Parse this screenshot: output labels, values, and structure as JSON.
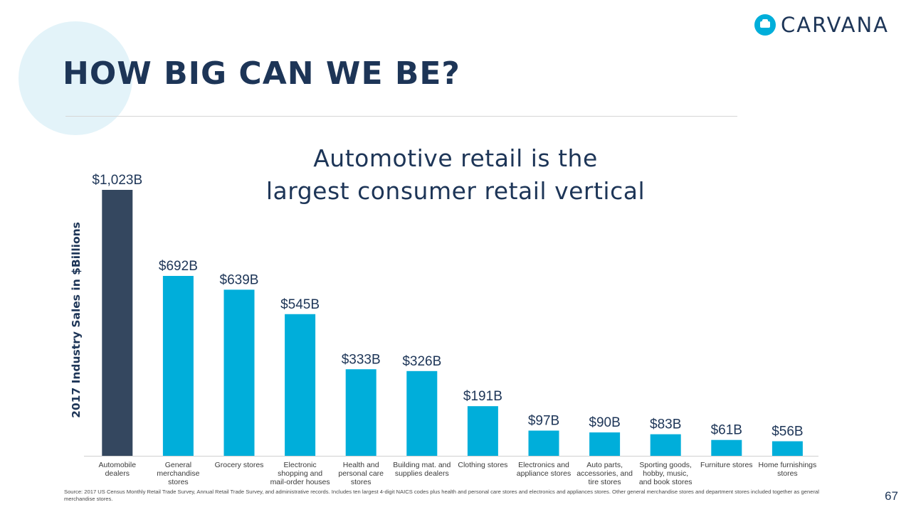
{
  "slide": {
    "title": "HOW BIG CAN WE BE?",
    "logo_text": "CARVANA",
    "subtitle_line1": "Automotive retail is the",
    "subtitle_line2": "largest consumer retail vertical",
    "footnote": "Source: 2017 US Census Monthly Retail Trade Survey, Annual Retail Trade Survey, and administrative records. Includes ten largest 4-digit NAICS codes plus health and personal care stores and electronics and appliances stores. Other general merchandise stores and department stores included together as general merchandise stores.",
    "page_number": "67"
  },
  "colors": {
    "highlight_bar": "#34475f",
    "bar": "#00aeda",
    "title": "#1d3557",
    "logo_accent": "#00aeda"
  },
  "chart_data": {
    "type": "bar",
    "ylabel": "2017 Industry Sales in $Billions",
    "categories": [
      [
        "Automobile",
        "dealers"
      ],
      [
        "General",
        "merchandise",
        "stores"
      ],
      [
        "Grocery stores"
      ],
      [
        "Electronic",
        "shopping and",
        "mail-order houses"
      ],
      [
        "Health and",
        "personal care",
        "stores"
      ],
      [
        "Building mat. and",
        "supplies dealers"
      ],
      [
        "Clothing stores"
      ],
      [
        "Electronics and",
        "appliance stores"
      ],
      [
        "Auto parts,",
        "accessories, and",
        "tire stores"
      ],
      [
        "Sporting goods,",
        "hobby, music,",
        "and book stores"
      ],
      [
        "Furniture stores"
      ],
      [
        "Home furnishings",
        "stores"
      ]
    ],
    "values": [
      1023,
      692,
      639,
      545,
      333,
      326,
      191,
      97,
      90,
      83,
      61,
      56
    ],
    "labels": [
      "$1,023B",
      "$692B",
      "$639B",
      "$545B",
      "$333B",
      "$326B",
      "$191B",
      "$97B",
      "$90B",
      "$83B",
      "$61B",
      "$56B"
    ],
    "highlight_index": 0,
    "ylim": [
      0,
      1023
    ]
  }
}
